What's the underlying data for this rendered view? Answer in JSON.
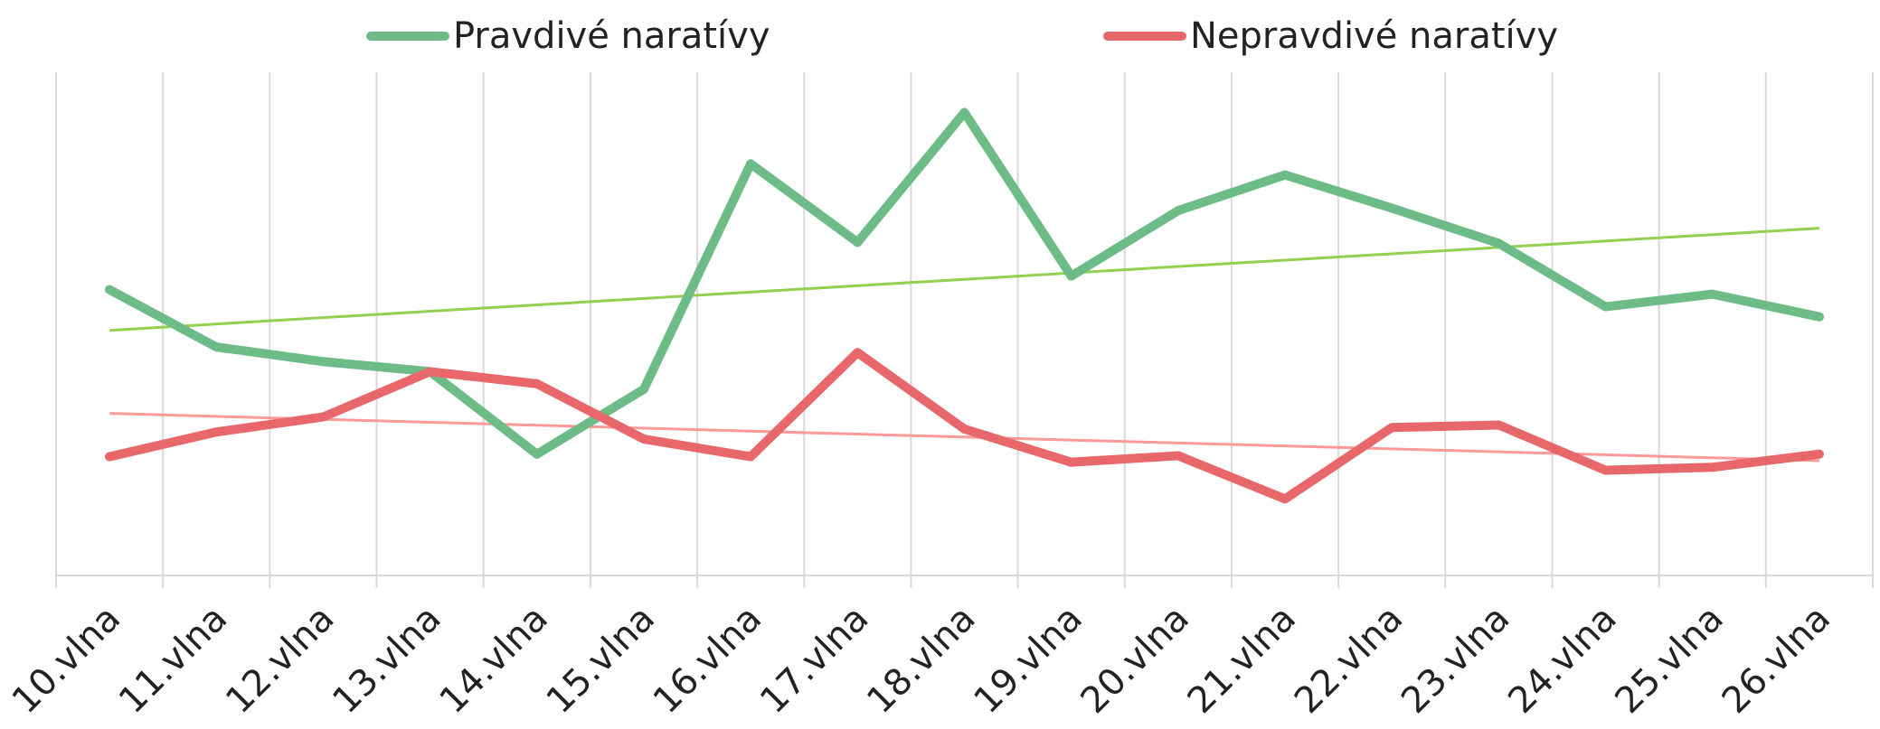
{
  "chart_data": {
    "type": "line",
    "categories": [
      "10.vlna",
      "11.vlna",
      "12.vlna",
      "13.vlna",
      "14.vlna",
      "15.vlna",
      "16.vlna",
      "17.vlna",
      "18.vlna",
      "19.vlna",
      "20.vlna",
      "21.vlna",
      "22.vlna",
      "23.vlna",
      "24.vlna",
      "25.vlna",
      "26.vlna"
    ],
    "series": [
      {
        "name": "Pravdivé naratívy",
        "color": "#6dbb86",
        "values": [
          0.568,
          0.454,
          0.425,
          0.405,
          0.241,
          0.37,
          0.818,
          0.662,
          0.92,
          0.595,
          0.725,
          0.796,
          0.73,
          0.66,
          0.534,
          0.559,
          0.514
        ],
        "trendline": {
          "color": "#92d050",
          "start": 0.487,
          "end": 0.69
        }
      },
      {
        "name": "Nepravdivé naratívy",
        "color": "#e8676a",
        "values": [
          0.236,
          0.285,
          0.315,
          0.405,
          0.381,
          0.271,
          0.236,
          0.443,
          0.291,
          0.225,
          0.238,
          0.152,
          0.294,
          0.299,
          0.209,
          0.215,
          0.241
        ],
        "trendline": {
          "color": "#ff9999",
          "start": 0.322,
          "end": 0.228
        }
      }
    ],
    "ylim": [
      0,
      1
    ],
    "grid": {
      "vertical": true,
      "horizontal": false
    },
    "legend_position": "top",
    "title": "",
    "xlabel": "",
    "ylabel": ""
  }
}
